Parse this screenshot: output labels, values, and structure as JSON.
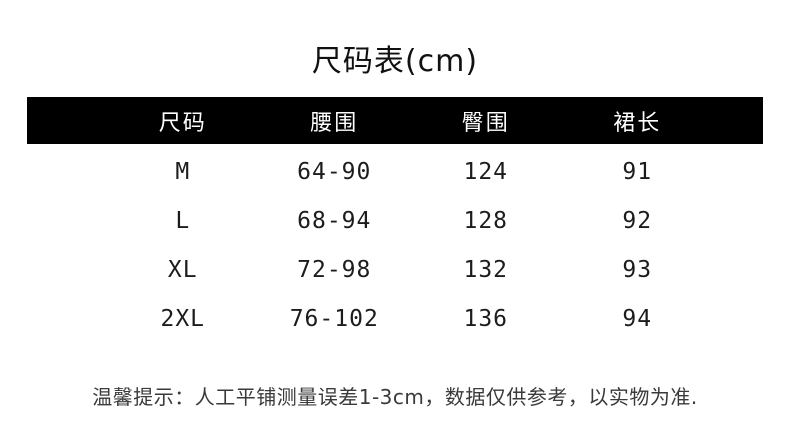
{
  "title": "尺码表(cm)",
  "chart_data": {
    "type": "table",
    "title": "尺码表(cm)",
    "unit": "cm",
    "columns": [
      "尺码",
      "腰围",
      "臀围",
      "裙长"
    ],
    "rows": [
      [
        "M",
        "64-90",
        "124",
        "91"
      ],
      [
        "L",
        "68-94",
        "128",
        "92"
      ],
      [
        "XL",
        "72-98",
        "132",
        "93"
      ],
      [
        "2XL",
        "76-102",
        "136",
        "94"
      ]
    ],
    "note": "温馨提示：人工平铺测量误差1-3cm，数据仅供参考，以实物为准."
  },
  "note": "温馨提示：人工平铺测量误差1-3cm，数据仅供参考，以实物为准.",
  "colors": {
    "background": "#ffffff",
    "header_bg": "#000000",
    "header_text": "#ffffff",
    "body_text": "#1c1c1c",
    "note_text": "#3a3a3a"
  }
}
